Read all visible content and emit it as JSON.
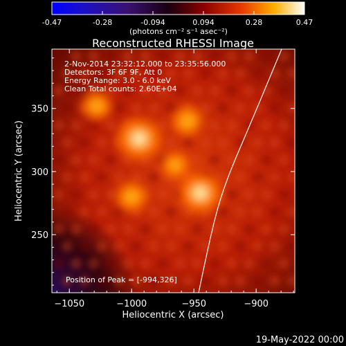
{
  "colorbar": {
    "ticks": [
      "-0.47",
      "-0.28",
      "-0.094",
      "0.094",
      "0.28",
      "0.47"
    ],
    "unit_label": "(photons cm⁻² s⁻¹ asec⁻²)"
  },
  "chart_data": {
    "type": "heatmap",
    "title": "Reconstructed RHESSI Image",
    "xlabel": "Heliocentric X (arcsec)",
    "ylabel": "Heliocentric Y (arcsec)",
    "xlim": [
      -1064,
      -869
    ],
    "ylim": [
      204,
      397
    ],
    "xticks": [
      -1050,
      -1000,
      -950,
      -900
    ],
    "xtick_labels": [
      "−1050",
      "−1000",
      "−950",
      "−900"
    ],
    "yticks": [
      250,
      300,
      350
    ],
    "ytick_labels": [
      "250",
      "300",
      "350"
    ],
    "colorbar_range": [
      -0.47,
      0.47
    ],
    "annotations": [
      "2-Nov-2014 23:32:12.000 to 23:35:56.000",
      "Detectors: 3F 6F 9F, Att 0",
      "Energy Range: 3.0 - 6.0 keV",
      "Clean     Total counts: 2.60E+04"
    ],
    "peak_label": "Position of Peak = [-994,326]",
    "peak": [
      -994,
      326
    ],
    "sources": [
      {
        "x": -994,
        "y": 326,
        "intensity": 0.47
      },
      {
        "x": -945,
        "y": 283,
        "intensity": 0.44
      },
      {
        "x": -1000,
        "y": 280,
        "intensity": 0.3
      },
      {
        "x": -955,
        "y": 340,
        "intensity": 0.3
      },
      {
        "x": -1028,
        "y": 352,
        "intensity": 0.28
      },
      {
        "x": -965,
        "y": 305,
        "intensity": 0.25
      }
    ]
  },
  "timestamp": "19-May-2022 00:00"
}
